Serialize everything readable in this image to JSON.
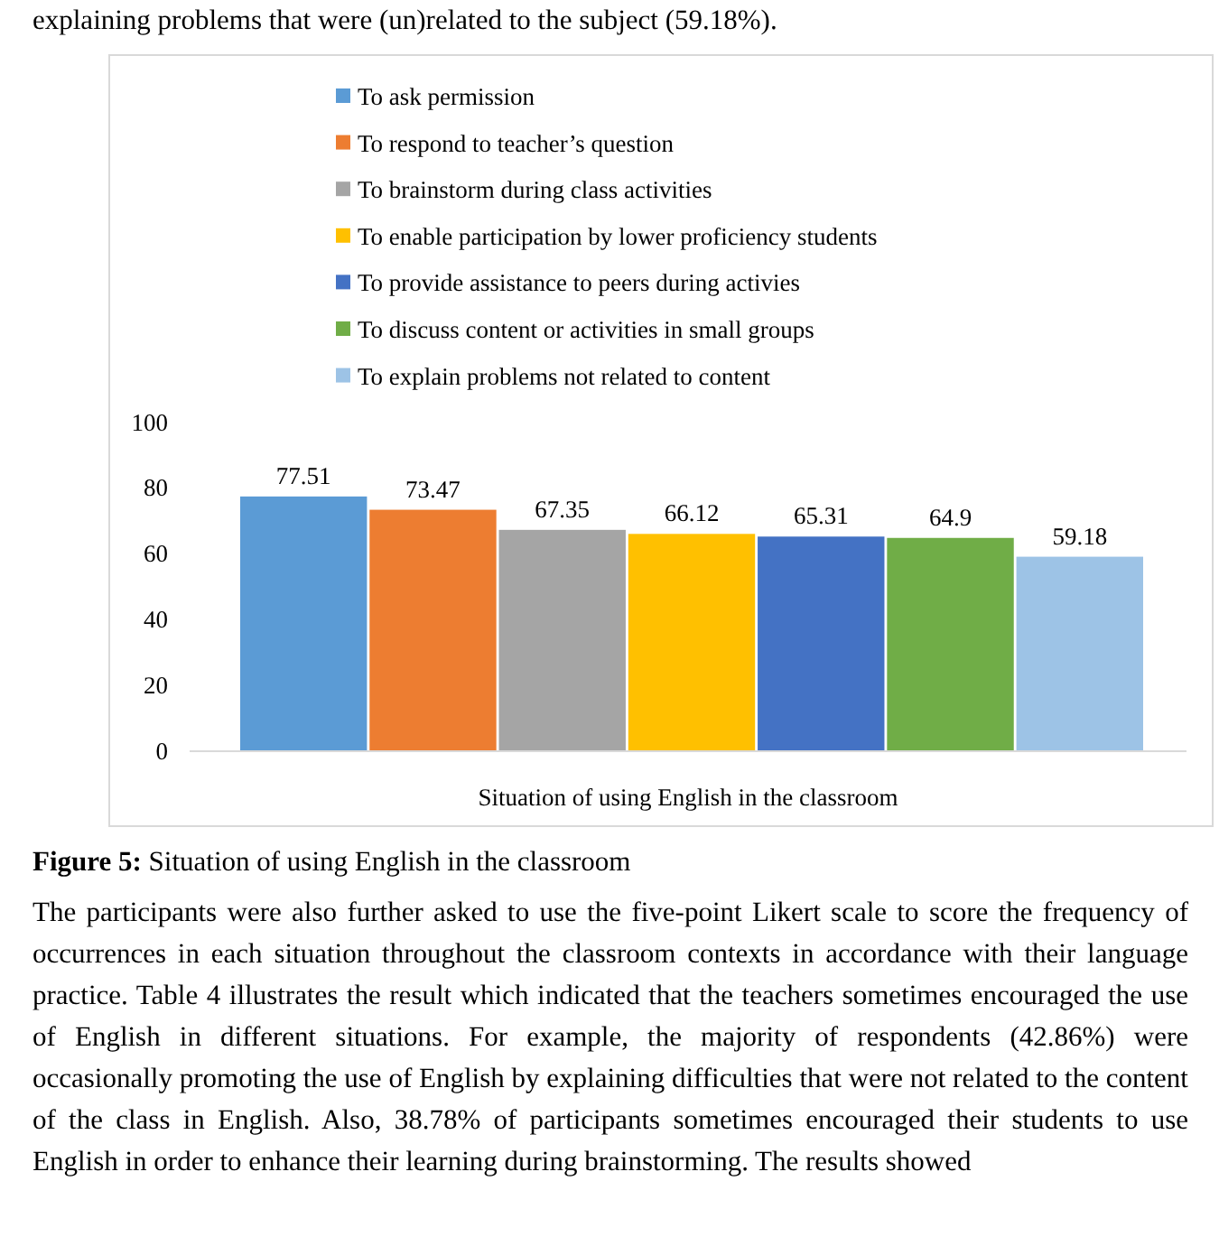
{
  "chart_data": {
    "type": "bar",
    "xlabel": "Situation of using English in the classroom",
    "categories": [
      null
    ],
    "series": [
      {
        "name": "To ask permission",
        "color": "#5b9bd5",
        "values": [
          77.51
        ]
      },
      {
        "name": "To respond to teacher’s question",
        "color": "#ed7d31",
        "values": [
          73.47
        ]
      },
      {
        "name": "To brainstorm during class activities",
        "color": "#a5a5a5",
        "values": [
          67.35
        ]
      },
      {
        "name": "To enable participation by lower proficiency students",
        "color": "#ffc000",
        "values": [
          66.12
        ]
      },
      {
        "name": "To provide assistance to peers during activies",
        "color": "#4472c4",
        "values": [
          65.31
        ]
      },
      {
        "name": "To discuss content or activities in small groups",
        "color": "#70ad47",
        "values": [
          64.9
        ]
      },
      {
        "name": "To explain problems not related to content",
        "color": "#9dc3e6",
        "values": [
          59.18
        ]
      }
    ],
    "ylim": [
      0,
      100
    ],
    "yticks": [
      0,
      20,
      40,
      60,
      80,
      100
    ],
    "data_labels": true,
    "legend": "top",
    "grid": false,
    "annotations": [
      "explaining problems that were (un)related to the subject (59.18%).",
      "Figure 5: Situation of using English in the classroom",
      "The participants were also further asked to use the five-point Likert scale to score the frequency of occurrences in each situation throughout the classroom contexts in accordance with their language practice. Table 4 illustrates the result which indicated that the teachers sometimes encouraged the use of English in different situations.  For example, the majority of respondents (42.86%) were occasionally promoting the use of English by explaining difficulties that were not related to the content of the class in English. Also, 38.78% of participants sometimes encouraged their students to use English in order to enhance their learning during brainstorming. The results showed"
    ]
  }
}
